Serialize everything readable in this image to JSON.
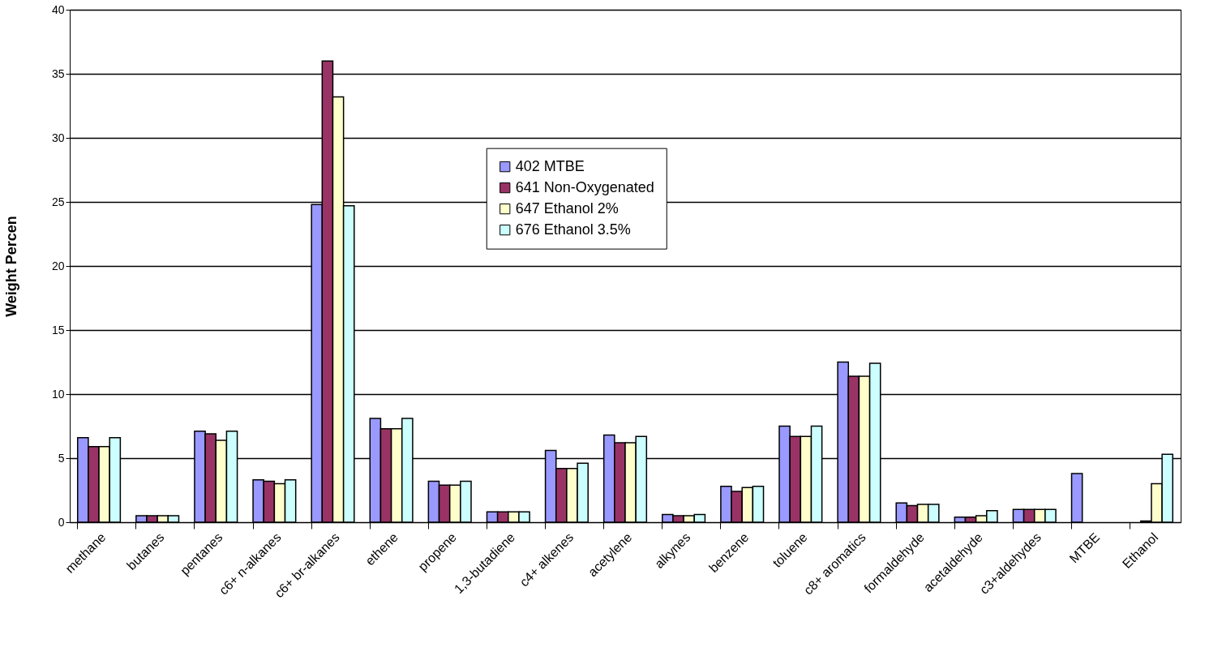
{
  "chart_data": {
    "type": "bar",
    "ylabel": "Weight Percen",
    "categories": [
      "methane",
      "butanes",
      "pentanes",
      "c6+ n-alkanes",
      "c6+ br-alkanes",
      "ethene",
      "propene",
      "1,3-butadiene",
      "c4+ alkenes",
      "acetylene",
      "alkynes",
      "benzene",
      "toluene",
      "c8+ aromatics",
      "formaldehyde",
      "acetaldehyde",
      "c3+aldehydes",
      "MTBE",
      "Ethanol"
    ],
    "series": [
      {
        "name": "402 MTBE",
        "color": "#9999ff",
        "values": [
          6.6,
          0.5,
          7.1,
          3.3,
          24.8,
          8.1,
          3.2,
          0.8,
          5.6,
          6.8,
          0.6,
          2.8,
          7.5,
          12.5,
          1.5,
          0.4,
          1.0,
          3.8,
          null
        ]
      },
      {
        "name": "641 Non-Oxygenated",
        "color": "#993366",
        "values": [
          5.9,
          0.5,
          6.9,
          3.2,
          36.0,
          7.3,
          2.9,
          0.8,
          4.2,
          6.2,
          0.5,
          2.4,
          6.7,
          11.4,
          1.3,
          0.4,
          1.0,
          null,
          0.1
        ]
      },
      {
        "name": "647 Ethanol 2%",
        "color": "#ffffcc",
        "values": [
          5.9,
          0.5,
          6.4,
          3.0,
          33.2,
          7.3,
          2.9,
          0.8,
          4.2,
          6.2,
          0.5,
          2.7,
          6.7,
          11.4,
          1.4,
          0.5,
          1.0,
          null,
          3.0
        ]
      },
      {
        "name": "676 Ethanol 3.5%",
        "color": "#ccffff",
        "values": [
          6.6,
          0.5,
          7.1,
          3.3,
          24.7,
          8.1,
          3.2,
          0.8,
          4.6,
          6.7,
          0.6,
          2.8,
          7.5,
          12.4,
          1.4,
          0.9,
          1.0,
          null,
          5.3
        ]
      }
    ],
    "ylim": [
      0,
      40
    ],
    "yticks": [
      0,
      5,
      10,
      15,
      20,
      25,
      30,
      35,
      40
    ],
    "grid": "y",
    "legend": "top"
  }
}
